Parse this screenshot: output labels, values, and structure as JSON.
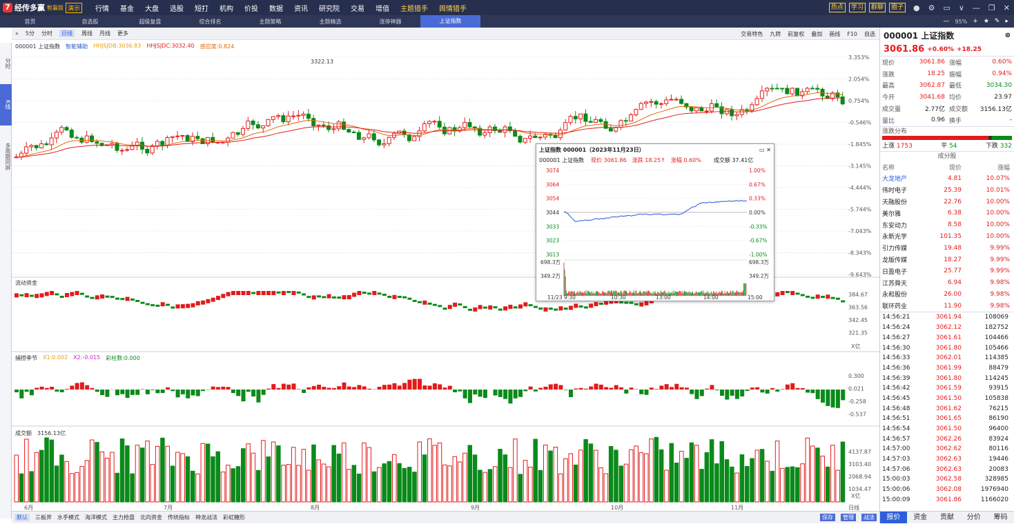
{
  "app": {
    "name": "经传多赢",
    "edition": "智赢版",
    "demo": "演示"
  },
  "mainmenu": [
    "行情",
    "基金",
    "大盘",
    "选股",
    "短打",
    "机构",
    "价投",
    "数据",
    "资讯",
    "研究院",
    "交易",
    "增值",
    "主题猎手",
    "舆情猎手"
  ],
  "topright": {
    "buttons": [
      "热点",
      "学习",
      "群聊",
      "圈子"
    ]
  },
  "tabs": [
    "首页",
    "自选股",
    "超级复盘",
    "综合排名",
    "主题策略",
    "主题精选",
    "涨停神器",
    "上证指数"
  ],
  "tab_zoom": "95%",
  "leftside": [
    "分时",
    "K线",
    "多周期同屏"
  ],
  "chart_toolbar": [
    "5分",
    "分时",
    "日线",
    "周线",
    "月线",
    "更多"
  ],
  "chart_toolbar_active": "日线",
  "chart_rtools": [
    "交易特色",
    "九转",
    "前复权",
    "叠加",
    "画线",
    "F10",
    "自选"
  ],
  "main": {
    "code_name": "000001 上证指数",
    "assist": "智能辅助",
    "ma1": "HHJSJDB:3036.83",
    "ma2": "HHJSJDC:3032.40",
    "ma3": "感应度:0.824",
    "high_label": "3322.13",
    "y_labels": [
      "3.353%",
      "2.054%",
      "0.754%",
      "-0.546%",
      "-1.845%",
      "-3.145%",
      "-4.444%",
      "-5.744%",
      "-7.043%",
      "-8.343%",
      "-9.643%"
    ]
  },
  "ind1": {
    "name": "流动资金",
    "y_labels": [
      "384.67",
      "363.56",
      "342.45",
      "321.35"
    ],
    "unit": "X亿"
  },
  "ind2": {
    "name": "捕捞季节",
    "x1": "X1:0.002",
    "x2": "X2:-0.015",
    "bar": "彩柱数:0.000",
    "y_labels": [
      "0.300",
      "0.021",
      "-0.258",
      "-0.537"
    ]
  },
  "ind3": {
    "name": "成交额",
    "value": "3156.13亿",
    "y_labels": [
      "4137.87",
      "3103.40",
      "2068.94",
      "1034.47"
    ],
    "unit": "X亿"
  },
  "x_months": [
    "6月",
    "7月",
    "8月",
    "9月",
    "10月",
    "11月"
  ],
  "x_corner": "日线",
  "bottombar": [
    "默认",
    "三板斧",
    "水手模式",
    "海洋模式",
    "主力抢盘",
    "北向资金",
    "传统指标",
    "神龙战法",
    "彩虹糖形"
  ],
  "bottom_right": [
    "保存",
    "管理",
    "战法"
  ],
  "popup": {
    "title": "上证指数 000001（2023年11月23日）",
    "name": "000001 上证指数",
    "price": "现价 3061.86",
    "change": "涨跌 18.25↑",
    "pct": "涨幅 0.60%",
    "amount": "成交额 37.41亿",
    "left_axis": [
      "3074",
      "3064",
      "3054",
      "3044",
      "3033",
      "3023",
      "3013"
    ],
    "right_axis": [
      "1.00%",
      "0.67%",
      "0.33%",
      "0.00%",
      "-0.33%",
      "-0.67%",
      "-1.00%"
    ],
    "vol_axis": [
      "698.3万",
      "349.2万"
    ],
    "x_labels": [
      "11/23 9:30",
      "10:30",
      "13:00",
      "14:00",
      "15:00"
    ]
  },
  "quote": {
    "code": "000001",
    "name": "上证指数",
    "price": "3061.86",
    "pct": "+0.60%",
    "chg": "+18.25",
    "rows": [
      [
        "现价",
        "3061.86",
        "涨幅",
        "0.60%"
      ],
      [
        "涨跌",
        "18.25",
        "振幅",
        "0.94%"
      ],
      [
        "最高",
        "3062.87",
        "最低",
        "3034.30"
      ],
      [
        "今开",
        "3041.68",
        "均价",
        "23.97"
      ],
      [
        "成交量",
        "2.77亿",
        "成交额",
        "3156.13亿"
      ],
      [
        "量比",
        "0.96",
        "换手",
        "-"
      ]
    ],
    "dist_title": "涨跌分布",
    "up_label": "上涨",
    "up": "1753",
    "flat_label": "平",
    "flat": "54",
    "down_label": "下跌",
    "down": "332",
    "comp_title": "成分股",
    "comp_head": [
      "名称",
      "现价",
      "涨幅"
    ],
    "comps": [
      [
        "大龙地产",
        "4.81",
        "10.07%"
      ],
      [
        "伟时电子",
        "25.39",
        "10.01%"
      ],
      [
        "天融股份",
        "22.76",
        "10.00%"
      ],
      [
        "美尔雅",
        "6.38",
        "10.00%"
      ],
      [
        "东安动力",
        "8.58",
        "10.00%"
      ],
      [
        "永新光学",
        "101.35",
        "10.00%"
      ],
      [
        "引力传媒",
        "19.48",
        "9.99%"
      ],
      [
        "龙版传媒",
        "18.27",
        "9.99%"
      ],
      [
        "日盈电子",
        "25.77",
        "9.99%"
      ],
      [
        "江苏舜天",
        "6.94",
        "9.98%"
      ],
      [
        "永和股份",
        "26.00",
        "9.98%"
      ],
      [
        "联环药业",
        "11.90",
        "9.98%"
      ]
    ],
    "ticks": [
      [
        "14:56:21",
        "3061.94",
        "108069"
      ],
      [
        "14:56:24",
        "3062.12",
        "182752"
      ],
      [
        "14:56:27",
        "3061.61",
        "104466"
      ],
      [
        "14:56:30",
        "3061.80",
        "105466"
      ],
      [
        "14:56:33",
        "3062.01",
        "114385"
      ],
      [
        "14:56:36",
        "3061.99",
        "88479"
      ],
      [
        "14:56:39",
        "3061.80",
        "114245"
      ],
      [
        "14:56:42",
        "3061.59",
        "93915"
      ],
      [
        "14:56:45",
        "3061.50",
        "105838"
      ],
      [
        "14:56:48",
        "3061.62",
        "76215"
      ],
      [
        "14:56:51",
        "3061.65",
        "86190"
      ],
      [
        "14:56:54",
        "3061.50",
        "96400"
      ],
      [
        "14:56:57",
        "3062.26",
        "83924"
      ],
      [
        "14:57:00",
        "3062.62",
        "80116"
      ],
      [
        "14:57:03",
        "3062.63",
        "19446"
      ],
      [
        "14:57:06",
        "3062.63",
        "20083"
      ],
      [
        "15:00:03",
        "3062.58",
        "328985"
      ],
      [
        "15:00:06",
        "3062.08",
        "1976940"
      ],
      [
        "15:00:09",
        "3061.86",
        "1166020"
      ]
    ],
    "bottom_tabs": [
      "报价",
      "资金",
      "贡献",
      "分价",
      "筹码"
    ]
  }
}
